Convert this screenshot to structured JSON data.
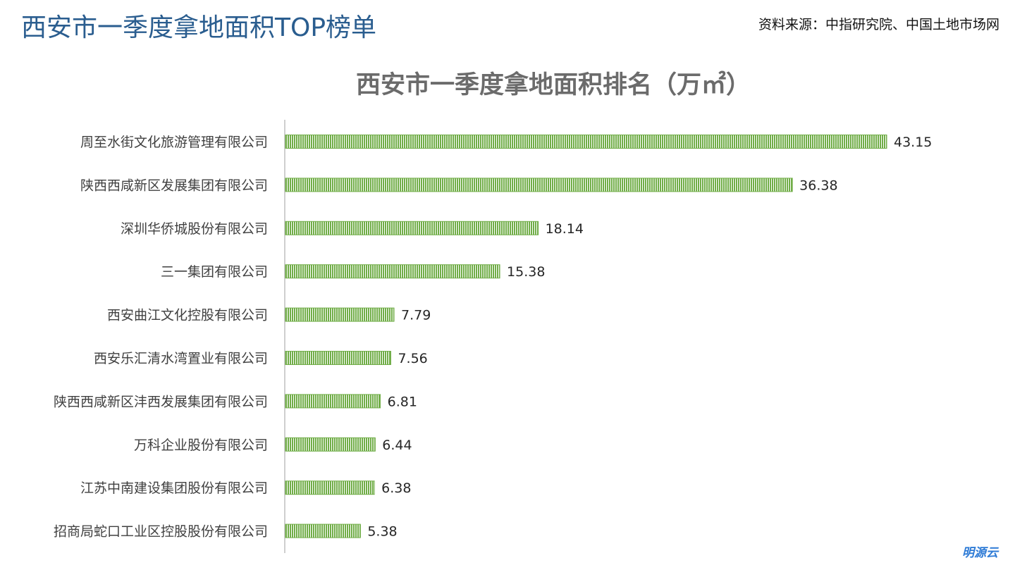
{
  "page": {
    "title": "西安市一季度拿地面积TOP榜单",
    "source": "资料来源：中指研究院、中国土地市场网",
    "logo_text": "明源云"
  },
  "colors": {
    "title": "#2a5d8f",
    "bar": "#70ad47",
    "axis": "#bfbfbf",
    "chart_title": "#6b6b6b"
  },
  "chart_data": {
    "type": "bar",
    "orientation": "horizontal",
    "title": "西安市一季度拿地面积排名（万㎡）",
    "categories": [
      "周至水街文化旅游管理有限公司",
      "陕西西咸新区发展集团有限公司",
      "深圳华侨城股份有限公司",
      "三一集团有限公司",
      "西安曲江文化控股有限公司",
      "西安乐汇清水湾置业有限公司",
      "陕西西咸新区沣西发展集团有限公司",
      "万科企业股份有限公司",
      "江苏中南建设集团股份有限公司",
      "招商局蛇口工业区控股股份有限公司"
    ],
    "values": [
      43.15,
      36.38,
      18.14,
      15.38,
      7.79,
      7.56,
      6.81,
      6.44,
      6.38,
      5.38
    ],
    "value_labels": [
      "43.15",
      "36.38",
      "18.14",
      "15.38",
      "7.79",
      "7.56",
      "6.81",
      "6.44",
      "6.38",
      "5.38"
    ],
    "xlim": [
      0,
      43.15
    ],
    "grid": false,
    "legend": "none",
    "bar_pattern": "vertical-hatch"
  }
}
